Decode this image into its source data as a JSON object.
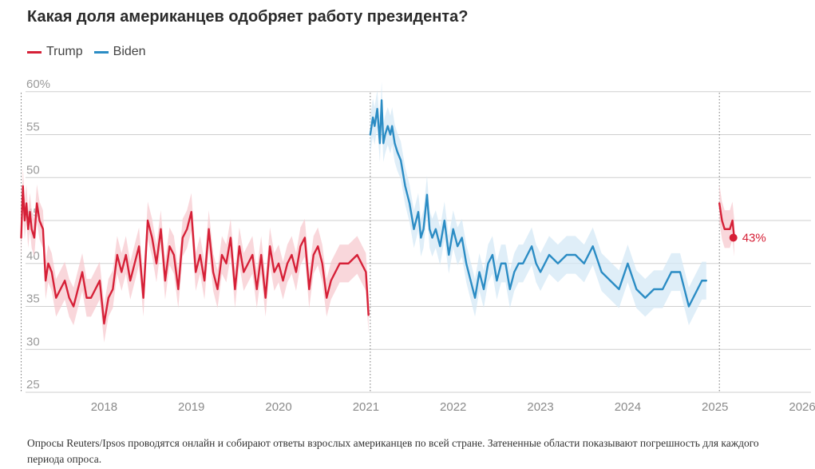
{
  "header": {
    "title": "Какая доля американцев одобряет работу президента?"
  },
  "legend": [
    {
      "label": "Trump",
      "color": "#d62037"
    },
    {
      "label": "Biden",
      "color": "#2b8cc4"
    }
  ],
  "footnote": "Опросы Reuters/Ipsos проводятся онлайн и собирают ответы взрослых американцев по всей стране. Затененные области показывают погрешность для каждого периода опроса.",
  "chart_data": {
    "type": "line",
    "title": "Какая доля американцев одобряет работу президента?",
    "xlabel": "",
    "ylabel": "",
    "ylim": [
      25,
      61
    ],
    "xlim": [
      2017.1,
      2026.1
    ],
    "y_ticks": [
      25,
      30,
      35,
      40,
      45,
      50,
      55,
      60
    ],
    "y_tick_labels": [
      "25",
      "30",
      "35",
      "40",
      "45",
      "50",
      "55",
      "60%"
    ],
    "x_ticks": [
      2018,
      2019,
      2020,
      2021,
      2022,
      2023,
      2024,
      2025,
      2026
    ],
    "x_tick_labels": [
      "2018",
      "2019",
      "2020",
      "2021",
      "2022",
      "2023",
      "2024",
      "2025",
      "2026"
    ],
    "inauguration_lines": [
      2017.05,
      2021.05,
      2025.05
    ],
    "grid": true,
    "legend_position": "top-left",
    "error_band_pct": 2.2,
    "annotation": {
      "label": "43%",
      "x": 2025.21,
      "y": 43
    },
    "series": [
      {
        "name": "Trump",
        "color": "#d62037",
        "band_color": "#f7c9cf",
        "x": [
          2017.05,
          2017.07,
          2017.09,
          2017.11,
          2017.13,
          2017.15,
          2017.17,
          2017.2,
          2017.23,
          2017.26,
          2017.3,
          2017.33,
          2017.36,
          2017.4,
          2017.45,
          2017.5,
          2017.55,
          2017.6,
          2017.65,
          2017.7,
          2017.75,
          2017.8,
          2017.85,
          2017.9,
          2017.95,
          2018.0,
          2018.05,
          2018.1,
          2018.15,
          2018.2,
          2018.25,
          2018.3,
          2018.35,
          2018.4,
          2018.45,
          2018.5,
          2018.55,
          2018.6,
          2018.65,
          2018.7,
          2018.75,
          2018.8,
          2018.85,
          2018.9,
          2018.95,
          2019.0,
          2019.05,
          2019.1,
          2019.15,
          2019.2,
          2019.25,
          2019.3,
          2019.35,
          2019.4,
          2019.45,
          2019.5,
          2019.55,
          2019.6,
          2019.65,
          2019.7,
          2019.75,
          2019.8,
          2019.85,
          2019.9,
          2019.95,
          2020.0,
          2020.05,
          2020.1,
          2020.15,
          2020.2,
          2020.25,
          2020.3,
          2020.35,
          2020.4,
          2020.45,
          2020.5,
          2020.55,
          2020.6,
          2020.7,
          2020.8,
          2020.9,
          2020.95,
          2021.0,
          2021.03,
          2025.05,
          2025.08,
          2025.11,
          2025.14,
          2025.17,
          2025.2,
          2025.22
        ],
        "values": [
          43,
          49,
          45,
          47,
          44,
          46,
          44,
          43,
          47,
          45,
          44,
          38,
          40,
          39,
          36,
          37,
          38,
          36,
          35,
          37,
          39,
          36,
          36,
          37,
          38,
          33,
          36,
          37,
          41,
          39,
          41,
          38,
          40,
          42,
          36,
          45,
          43,
          40,
          44,
          38,
          42,
          41,
          37,
          43,
          44,
          46,
          39,
          41,
          38,
          44,
          39,
          37,
          41,
          40,
          43,
          37,
          42,
          39,
          40,
          41,
          37,
          41,
          36,
          42,
          39,
          40,
          38,
          40,
          41,
          39,
          42,
          43,
          37,
          41,
          42,
          40,
          36,
          38,
          40,
          40,
          41,
          40,
          39,
          34,
          47,
          45,
          44,
          44,
          44,
          45,
          43
        ]
      },
      {
        "name": "Biden",
        "color": "#2b8cc4",
        "band_color": "#d4e8f6",
        "x": [
          2021.05,
          2021.08,
          2021.1,
          2021.13,
          2021.16,
          2021.18,
          2021.2,
          2021.22,
          2021.25,
          2021.28,
          2021.3,
          2021.33,
          2021.36,
          2021.4,
          2021.45,
          2021.5,
          2021.55,
          2021.6,
          2021.63,
          2021.66,
          2021.7,
          2021.73,
          2021.76,
          2021.8,
          2021.85,
          2021.9,
          2021.95,
          2022.0,
          2022.05,
          2022.1,
          2022.15,
          2022.2,
          2022.25,
          2022.3,
          2022.35,
          2022.4,
          2022.45,
          2022.5,
          2022.55,
          2022.6,
          2022.65,
          2022.7,
          2022.75,
          2022.8,
          2022.85,
          2022.9,
          2022.95,
          2023.0,
          2023.1,
          2023.2,
          2023.3,
          2023.4,
          2023.5,
          2023.6,
          2023.7,
          2023.8,
          2023.9,
          2024.0,
          2024.1,
          2024.2,
          2024.3,
          2024.4,
          2024.5,
          2024.6,
          2024.7,
          2024.75,
          2024.8,
          2024.85,
          2024.9
        ],
        "values": [
          55,
          57,
          56,
          58,
          54,
          59,
          54,
          55,
          56,
          55,
          56,
          54,
          53,
          52,
          49,
          47,
          44,
          46,
          43,
          44,
          48,
          44,
          43,
          44,
          42,
          45,
          41,
          44,
          42,
          43,
          40,
          38,
          36,
          39,
          37,
          40,
          41,
          38,
          40,
          40,
          37,
          39,
          40,
          40,
          41,
          42,
          40,
          39,
          41,
          40,
          41,
          41,
          40,
          42,
          39,
          38,
          37,
          40,
          37,
          36,
          37,
          37,
          39,
          39,
          35,
          36,
          37,
          38,
          38
        ]
      }
    ]
  }
}
